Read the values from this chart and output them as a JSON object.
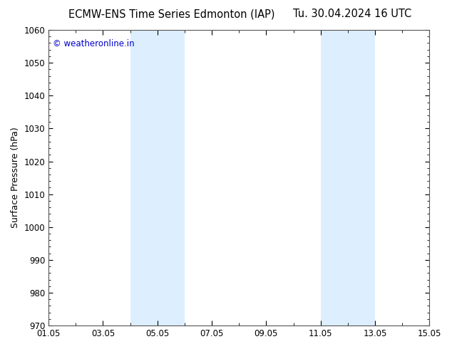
{
  "title_left": "ECMW-ENS Time Series Edmonton (IAP)",
  "title_right": "Tu. 30.04.2024 16 UTC",
  "ylabel": "Surface Pressure (hPa)",
  "ylim": [
    970,
    1060
  ],
  "yticks": [
    970,
    980,
    990,
    1000,
    1010,
    1020,
    1030,
    1040,
    1050,
    1060
  ],
  "x_start_day": 1,
  "x_end_day": 15,
  "xtick_labels": [
    "01.05",
    "03.05",
    "05.05",
    "07.05",
    "09.05",
    "11.05",
    "13.05",
    "15.05"
  ],
  "xtick_days": [
    1,
    3,
    5,
    7,
    9,
    11,
    13,
    15
  ],
  "shaded_regions": [
    {
      "start_day": 4,
      "end_day": 6
    },
    {
      "start_day": 11,
      "end_day": 13
    }
  ],
  "shaded_color": "#ddeeff",
  "watermark_text": "© weatheronline.in",
  "watermark_color": "#0000cc",
  "bg_color": "#ffffff",
  "border_color": "#555555",
  "title_fontsize": 10.5,
  "axis_label_fontsize": 9,
  "tick_fontsize": 8.5
}
